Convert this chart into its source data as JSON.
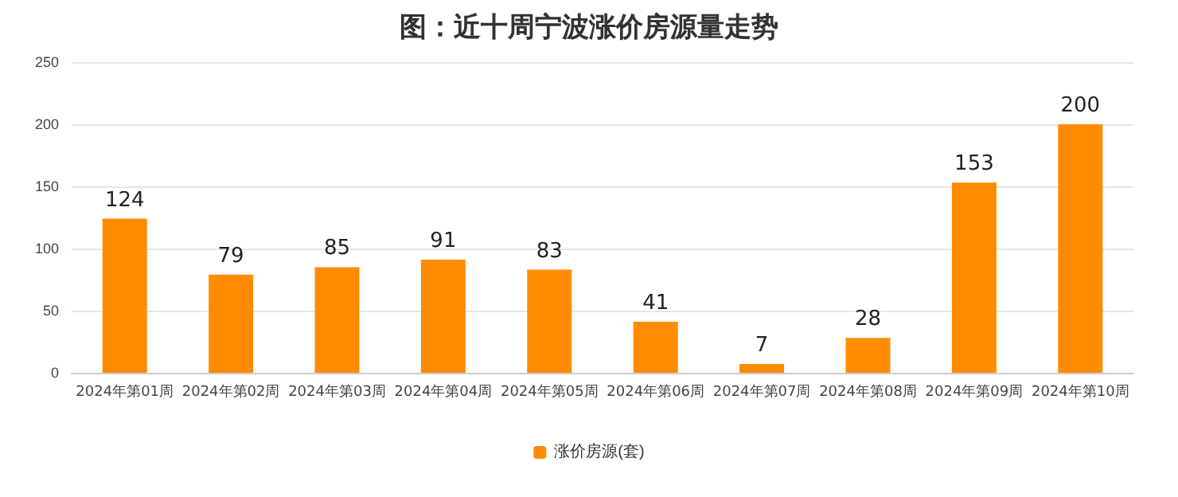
{
  "chart_data": {
    "type": "bar",
    "title": "图：近十周宁波涨价房源量走势",
    "categories": [
      "2024年第01周",
      "2024年第02周",
      "2024年第03周",
      "2024年第04周",
      "2024年第05周",
      "2024年第06周",
      "2024年第07周",
      "2024年第08周",
      "2024年第09周",
      "2024年第10周"
    ],
    "series": [
      {
        "name": "涨价房源(套)",
        "color": "#ff8c00",
        "values": [
          124,
          79,
          85,
          91,
          83,
          41,
          7,
          28,
          153,
          200
        ]
      }
    ],
    "ylim": [
      0,
      250
    ],
    "yticks": [
      0,
      50,
      100,
      150,
      200,
      250
    ],
    "grid": "y",
    "legend": "bottom",
    "data_labels": true
  }
}
